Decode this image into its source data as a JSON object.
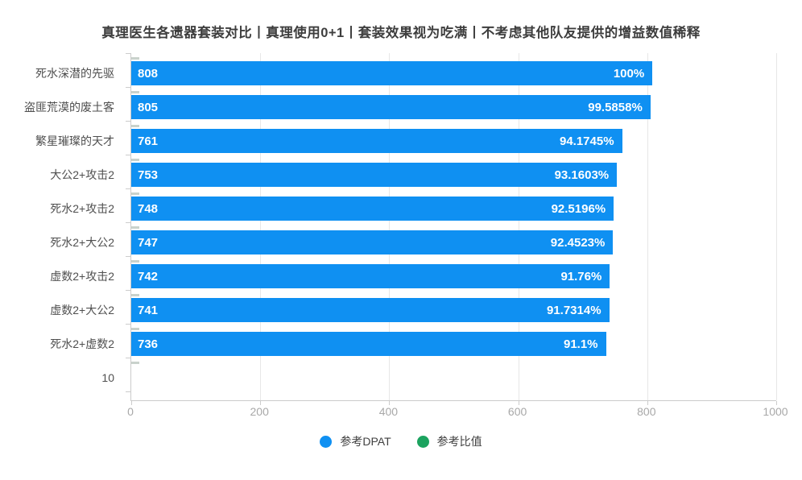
{
  "title": "真理医生各遗器套装对比丨真理使用0+1丨套装效果视为吃满丨不考虑其他队友提供的增益数值稀释",
  "chart_data": {
    "type": "bar",
    "orientation": "horizontal",
    "title": "真理医生各遗器套装对比丨真理使用0+1丨套装效果视为吃满丨不考虑其他队友提供的增益数值稀释",
    "categories": [
      "死水深潜的先驱",
      "盗匪荒漠的废土客",
      "繁星璀璨的天才",
      "大公2+攻击2",
      "死水2+攻击2",
      "死水2+大公2",
      "虚数2+攻击2",
      "虚数2+大公2",
      "死水2+虚数2",
      "10"
    ],
    "series": [
      {
        "name": "参考DPAT",
        "color": "#0f90f2",
        "values": [
          808,
          805,
          761,
          753,
          748,
          747,
          742,
          741,
          736,
          null
        ]
      },
      {
        "name": "参考比值",
        "color": "#1ca35f",
        "labels": [
          "100%",
          "99.5858%",
          "94.1745%",
          "93.1603%",
          "92.5196%",
          "92.4523%",
          "91.76%",
          "91.7314%",
          "91.1%",
          null
        ]
      }
    ],
    "xlim": [
      0,
      1000
    ],
    "x_ticks": [
      0,
      200,
      400,
      600,
      800,
      1000
    ],
    "grid": true,
    "legend_position": "bottom",
    "colors": {
      "bar_blue": "#0f90f2",
      "legend_green": "#1ca35f",
      "grid_line": "#e7e7e7",
      "axis_line": "#cccccc",
      "tick_label": "#a8a8a8",
      "category_label": "#4f4f4f",
      "title_text": "#3d3d3d"
    }
  }
}
